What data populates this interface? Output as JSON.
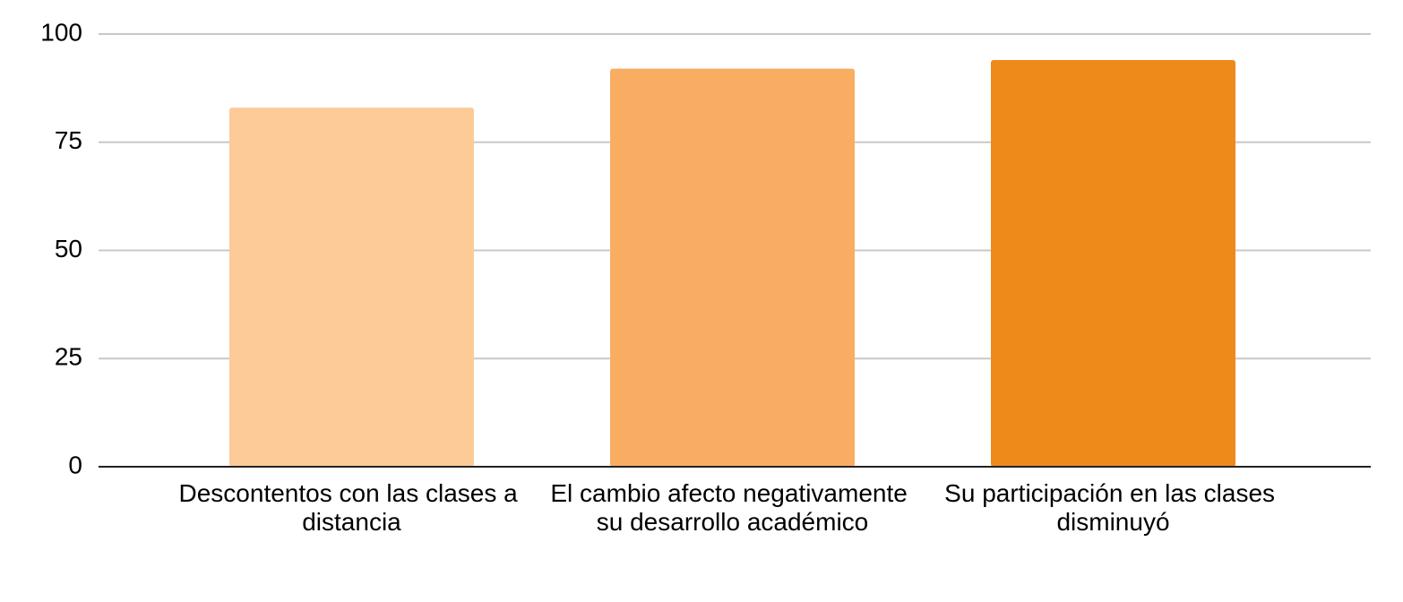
{
  "chart_data": {
    "type": "bar",
    "categories": [
      "Descontentos con las clases a distancia",
      "El cambio afecto negativamente su desarrollo académico",
      "Su participación en las clases disminuyó"
    ],
    "values": [
      83,
      92,
      94
    ],
    "colors": [
      "#fccb98",
      "#f9ad62",
      "#ee8a1a"
    ],
    "ylim": [
      0,
      100
    ],
    "yticks": [
      0,
      25,
      50,
      75,
      100
    ],
    "grid": true
  }
}
